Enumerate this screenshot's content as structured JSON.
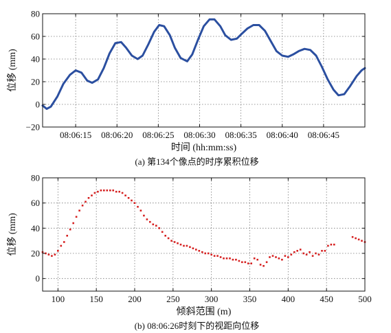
{
  "chart_data": [
    {
      "type": "line",
      "caption": "(a) 第134个像点的时序累积位移",
      "xlabel": "时间 (hh:mm:ss)",
      "ylabel": "位移 (mm)",
      "xlim": [
        "08:06:11",
        "08:06:50"
      ],
      "ylim": [
        -20,
        80
      ],
      "xticks": [
        "08:06:15",
        "08:06:20",
        "08:06:25",
        "08:06:30",
        "08:06:35",
        "08:06:40",
        "08:06:45"
      ],
      "yticks": [
        -20,
        0,
        20,
        40,
        60,
        80
      ],
      "grid": true,
      "colors": {
        "line": "#2b4fa0"
      },
      "series": [
        {
          "x": [
            "08:06:11.0",
            "08:06:11.5",
            "08:06:12.0",
            "08:06:12.8",
            "08:06:13.5",
            "08:06:14.3",
            "08:06:15.0",
            "08:06:15.7",
            "08:06:16.4",
            "08:06:17.0",
            "08:06:17.7",
            "08:06:18.4",
            "08:06:19.1",
            "08:06:19.8",
            "08:06:20.5",
            "08:06:21.1",
            "08:06:21.8",
            "08:06:22.5",
            "08:06:23.1",
            "08:06:23.8",
            "08:06:24.5",
            "08:06:25.1",
            "08:06:25.7",
            "08:06:26.4",
            "08:06:27.0",
            "08:06:27.7",
            "08:06:28.5",
            "08:06:29.1",
            "08:06:29.8",
            "08:06:30.5",
            "08:06:31.2",
            "08:06:31.8",
            "08:06:32.5",
            "08:06:33.1",
            "08:06:33.8",
            "08:06:34.5",
            "08:06:35.2",
            "08:06:35.8",
            "08:06:36.5",
            "08:06:37.2",
            "08:06:37.9",
            "08:06:38.6",
            "08:06:39.3",
            "08:06:40.0",
            "08:06:40.7",
            "08:06:41.3",
            "08:06:42.0",
            "08:06:42.7",
            "08:06:43.4",
            "08:06:44.1",
            "08:06:44.8",
            "08:06:45.5",
            "08:06:46.2",
            "08:06:46.8",
            "08:06:47.5",
            "08:06:48.2",
            "08:06:49.0",
            "08:06:49.6",
            "08:06:50.0"
          ],
          "y": [
            -1,
            -4,
            -2,
            7,
            18,
            26,
            30,
            28,
            21,
            19,
            22,
            32,
            45,
            54,
            55,
            50,
            43,
            40,
            43,
            53,
            64,
            70,
            69,
            61,
            50,
            41,
            38,
            44,
            57,
            69,
            75,
            75,
            69,
            61,
            57,
            58,
            63,
            67,
            70,
            70,
            65,
            56,
            47,
            43,
            42,
            44,
            47,
            49,
            48,
            43,
            33,
            22,
            13,
            8,
            9,
            16,
            25,
            30,
            32
          ]
        }
      ]
    },
    {
      "type": "scatter",
      "caption": "(b) 08:06:26时刻下的视距向位移",
      "xlabel": "倾斜范围 (m)",
      "ylabel": "位移 (mm)",
      "xlim": [
        80,
        500
      ],
      "ylim": [
        -10,
        80
      ],
      "xticks": [
        100,
        150,
        200,
        250,
        300,
        350,
        400,
        450,
        500
      ],
      "yticks": [
        0,
        20,
        40,
        60,
        80
      ],
      "grid": true,
      "colors": {
        "points": "#d62020"
      },
      "series": [
        {
          "x": [
            80,
            84,
            88,
            92,
            96,
            100,
            104,
            108,
            112,
            116,
            120,
            124,
            128,
            132,
            136,
            140,
            144,
            148,
            152,
            156,
            160,
            164,
            168,
            172,
            176,
            180,
            184,
            188,
            192,
            196,
            200,
            204,
            208,
            212,
            216,
            220,
            224,
            228,
            232,
            236,
            240,
            244,
            248,
            252,
            256,
            260,
            264,
            268,
            272,
            276,
            280,
            284,
            288,
            292,
            296,
            300,
            304,
            308,
            312,
            316,
            320,
            324,
            328,
            332,
            336,
            340,
            344,
            348,
            352,
            356,
            360,
            364,
            368,
            372,
            376,
            380,
            384,
            388,
            392,
            396,
            400,
            404,
            408,
            412,
            416,
            420,
            424,
            428,
            432,
            436,
            440,
            444,
            448,
            452,
            456,
            460,
            484,
            488,
            492,
            496,
            500
          ],
          "y": [
            21,
            20,
            19,
            18,
            19,
            22,
            26,
            29,
            34,
            39,
            44,
            49,
            54,
            58,
            61,
            64,
            66,
            68,
            69,
            70,
            70,
            70,
            70,
            70,
            69,
            69,
            68,
            66,
            64,
            62,
            60,
            57,
            54,
            50,
            47,
            45,
            43,
            42,
            40,
            37,
            34,
            32,
            30,
            29,
            28,
            27,
            26,
            26,
            25,
            24,
            23,
            22,
            21,
            20,
            20,
            19,
            18,
            18,
            17,
            16,
            16,
            16,
            15,
            15,
            14,
            13,
            13,
            12,
            12,
            16,
            15,
            11,
            10,
            13,
            17,
            18,
            17,
            16,
            15,
            18,
            17,
            19,
            21,
            22,
            23,
            20,
            19,
            21,
            18,
            20,
            19,
            22,
            22,
            26,
            27,
            27,
            33,
            32,
            31,
            30,
            29
          ]
        }
      ]
    }
  ]
}
